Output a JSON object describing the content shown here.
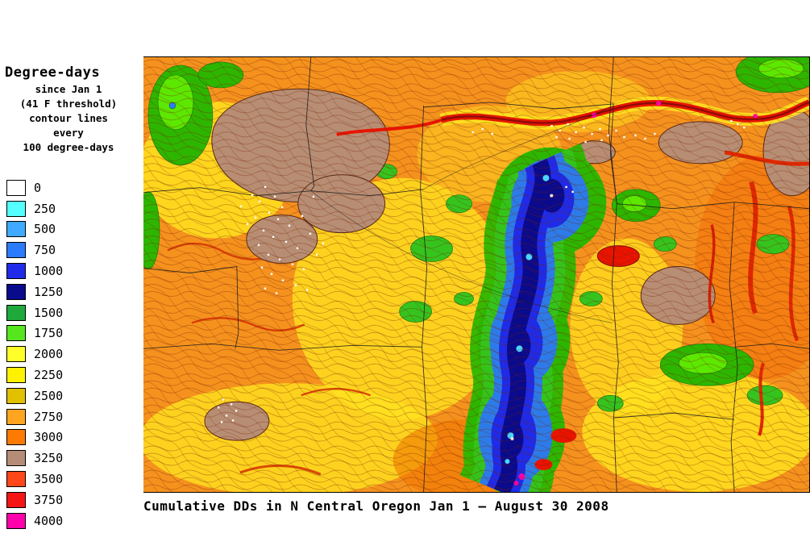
{
  "legend": {
    "title": "Degree-days",
    "subtitle_lines": [
      "since Jan 1",
      "(41 F threshold)",
      "contour lines",
      "every",
      "100 degree-days"
    ],
    "entries": [
      {
        "label": "0",
        "color": "#FFFFFF"
      },
      {
        "label": "250",
        "color": "#55FFFF"
      },
      {
        "label": "500",
        "color": "#3FAAFF"
      },
      {
        "label": "750",
        "color": "#2B7BFF"
      },
      {
        "label": "1000",
        "color": "#1F2BE8"
      },
      {
        "label": "1250",
        "color": "#0A0A8C"
      },
      {
        "label": "1500",
        "color": "#1FA83C"
      },
      {
        "label": "1750",
        "color": "#55E61E"
      },
      {
        "label": "2000",
        "color": "#FFFF29"
      },
      {
        "label": "2250",
        "color": "#FFF200"
      },
      {
        "label": "2500",
        "color": "#E0C000"
      },
      {
        "label": "2750",
        "color": "#FFA51F"
      },
      {
        "label": "3000",
        "color": "#FF7A00"
      },
      {
        "label": "3250",
        "color": "#B48C78"
      },
      {
        "label": "3500",
        "color": "#FF4719"
      },
      {
        "label": "3750",
        "color": "#F51414"
      },
      {
        "label": "4000",
        "color": "#FF00AA"
      }
    ]
  },
  "map": {
    "caption": "Cumulative DDs in N Central Oregon Jan 1 — August 30 2008"
  }
}
